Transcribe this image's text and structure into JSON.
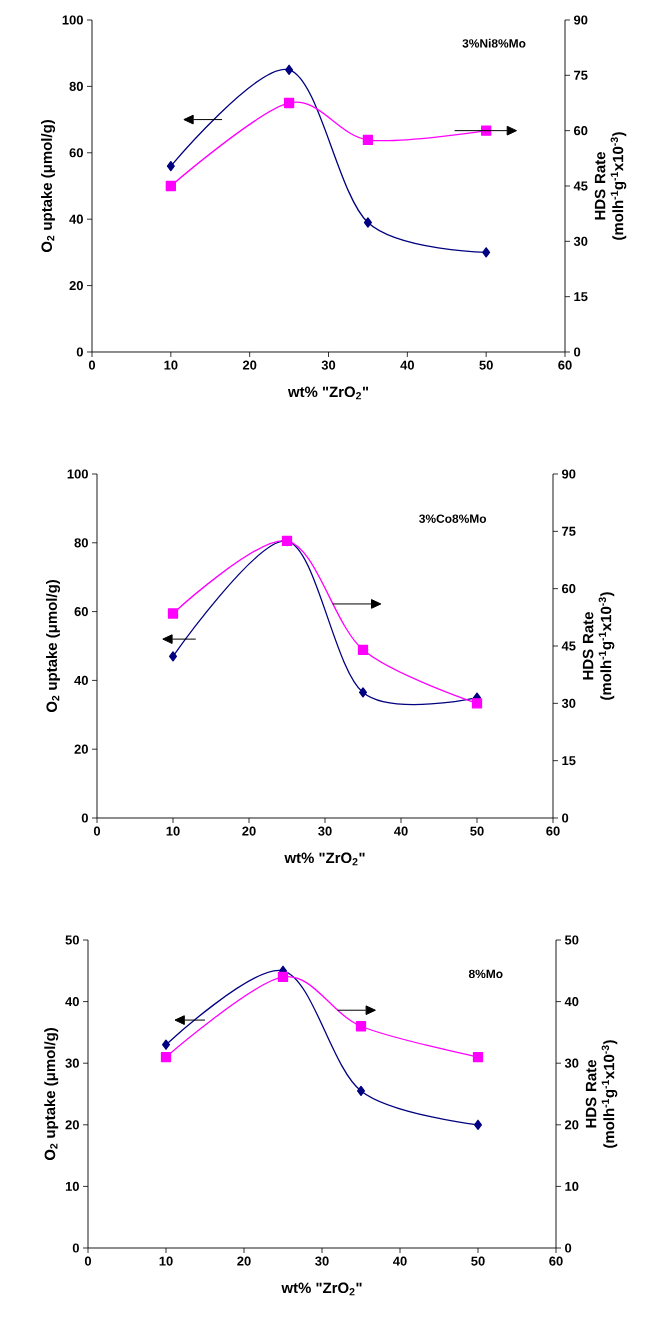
{
  "chart_data": [
    {
      "type": "line",
      "xlabel": "wt% \"ZrO$_{2}$\"",
      "ylabel": "O$_{2}$ uptake (μmol/g)",
      "y2label": "HDS Rate (molh$^{-1}$g$^{-1}$x10$^{-3}$)",
      "annotations": [
        "3%Ni8%Mo"
      ],
      "x": [
        10,
        25,
        35,
        50
      ],
      "xlim": [
        0,
        60
      ],
      "xticks": [
        0,
        10,
        20,
        30,
        40,
        50,
        60
      ],
      "ylim": [
        0,
        100
      ],
      "yticks": [
        0,
        20,
        40,
        60,
        80,
        100
      ],
      "y2lim": [
        0,
        90
      ],
      "y2ticks": [
        0,
        15,
        30,
        45,
        60,
        75,
        90
      ],
      "grid": false,
      "series": [
        {
          "color": "#000080",
          "marker": "diamond",
          "values": [
            56,
            85,
            39,
            30
          ]
        },
        {
          "color": "#ff00ff",
          "marker": "square",
          "axis": "y2",
          "values": [
            45,
            67.5,
            57.5,
            60
          ]
        }
      ]
    },
    {
      "type": "line",
      "xlabel": "wt% \"ZrO$_{2}$\"",
      "ylabel": "O$_{2}$ uptake (μmol/g)",
      "y2label": "HDS Rate (molh$^{-1}$g$^{-1}$x10$^{-3}$)",
      "annotations": [
        "3%Co8%Mo"
      ],
      "x": [
        10,
        25,
        35,
        50
      ],
      "xlim": [
        0,
        60
      ],
      "xticks": [
        0,
        10,
        20,
        30,
        40,
        50,
        60
      ],
      "ylim": [
        0,
        100
      ],
      "yticks": [
        0,
        20,
        40,
        60,
        80,
        100
      ],
      "y2lim": [
        0,
        90
      ],
      "y2ticks": [
        0,
        15,
        30,
        45,
        60,
        75,
        90
      ],
      "grid": false,
      "series": [
        {
          "color": "#000080",
          "marker": "diamond",
          "values": [
            47,
            80.5,
            36.5,
            35
          ]
        },
        {
          "color": "#ff00ff",
          "marker": "square",
          "axis": "y2",
          "values": [
            53.5,
            72.5,
            44,
            30
          ]
        }
      ]
    },
    {
      "type": "line",
      "xlabel": "wt% \"ZrO$_{2}$\"",
      "ylabel": "O$_{2}$ uptake (μmol/g)",
      "y2label": "HDS Rate (molh$^{-1}$g$^{-1}$x10$^{-3}$)",
      "annotations": [
        "8%Mo"
      ],
      "x": [
        10,
        25,
        35,
        50
      ],
      "xlim": [
        0,
        60
      ],
      "xticks": [
        0,
        10,
        20,
        30,
        40,
        50,
        60
      ],
      "ylim": [
        0,
        50
      ],
      "yticks": [
        0,
        10,
        20,
        30,
        40,
        50
      ],
      "y2lim": [
        0,
        50
      ],
      "y2ticks": [
        0,
        10,
        20,
        30,
        40,
        50
      ],
      "grid": false,
      "series": [
        {
          "color": "#000080",
          "marker": "diamond",
          "values": [
            33,
            45,
            25.5,
            20
          ]
        },
        {
          "color": "#ff00ff",
          "marker": "square",
          "axis": "y2",
          "values": [
            31,
            44,
            36,
            31
          ]
        }
      ]
    }
  ]
}
